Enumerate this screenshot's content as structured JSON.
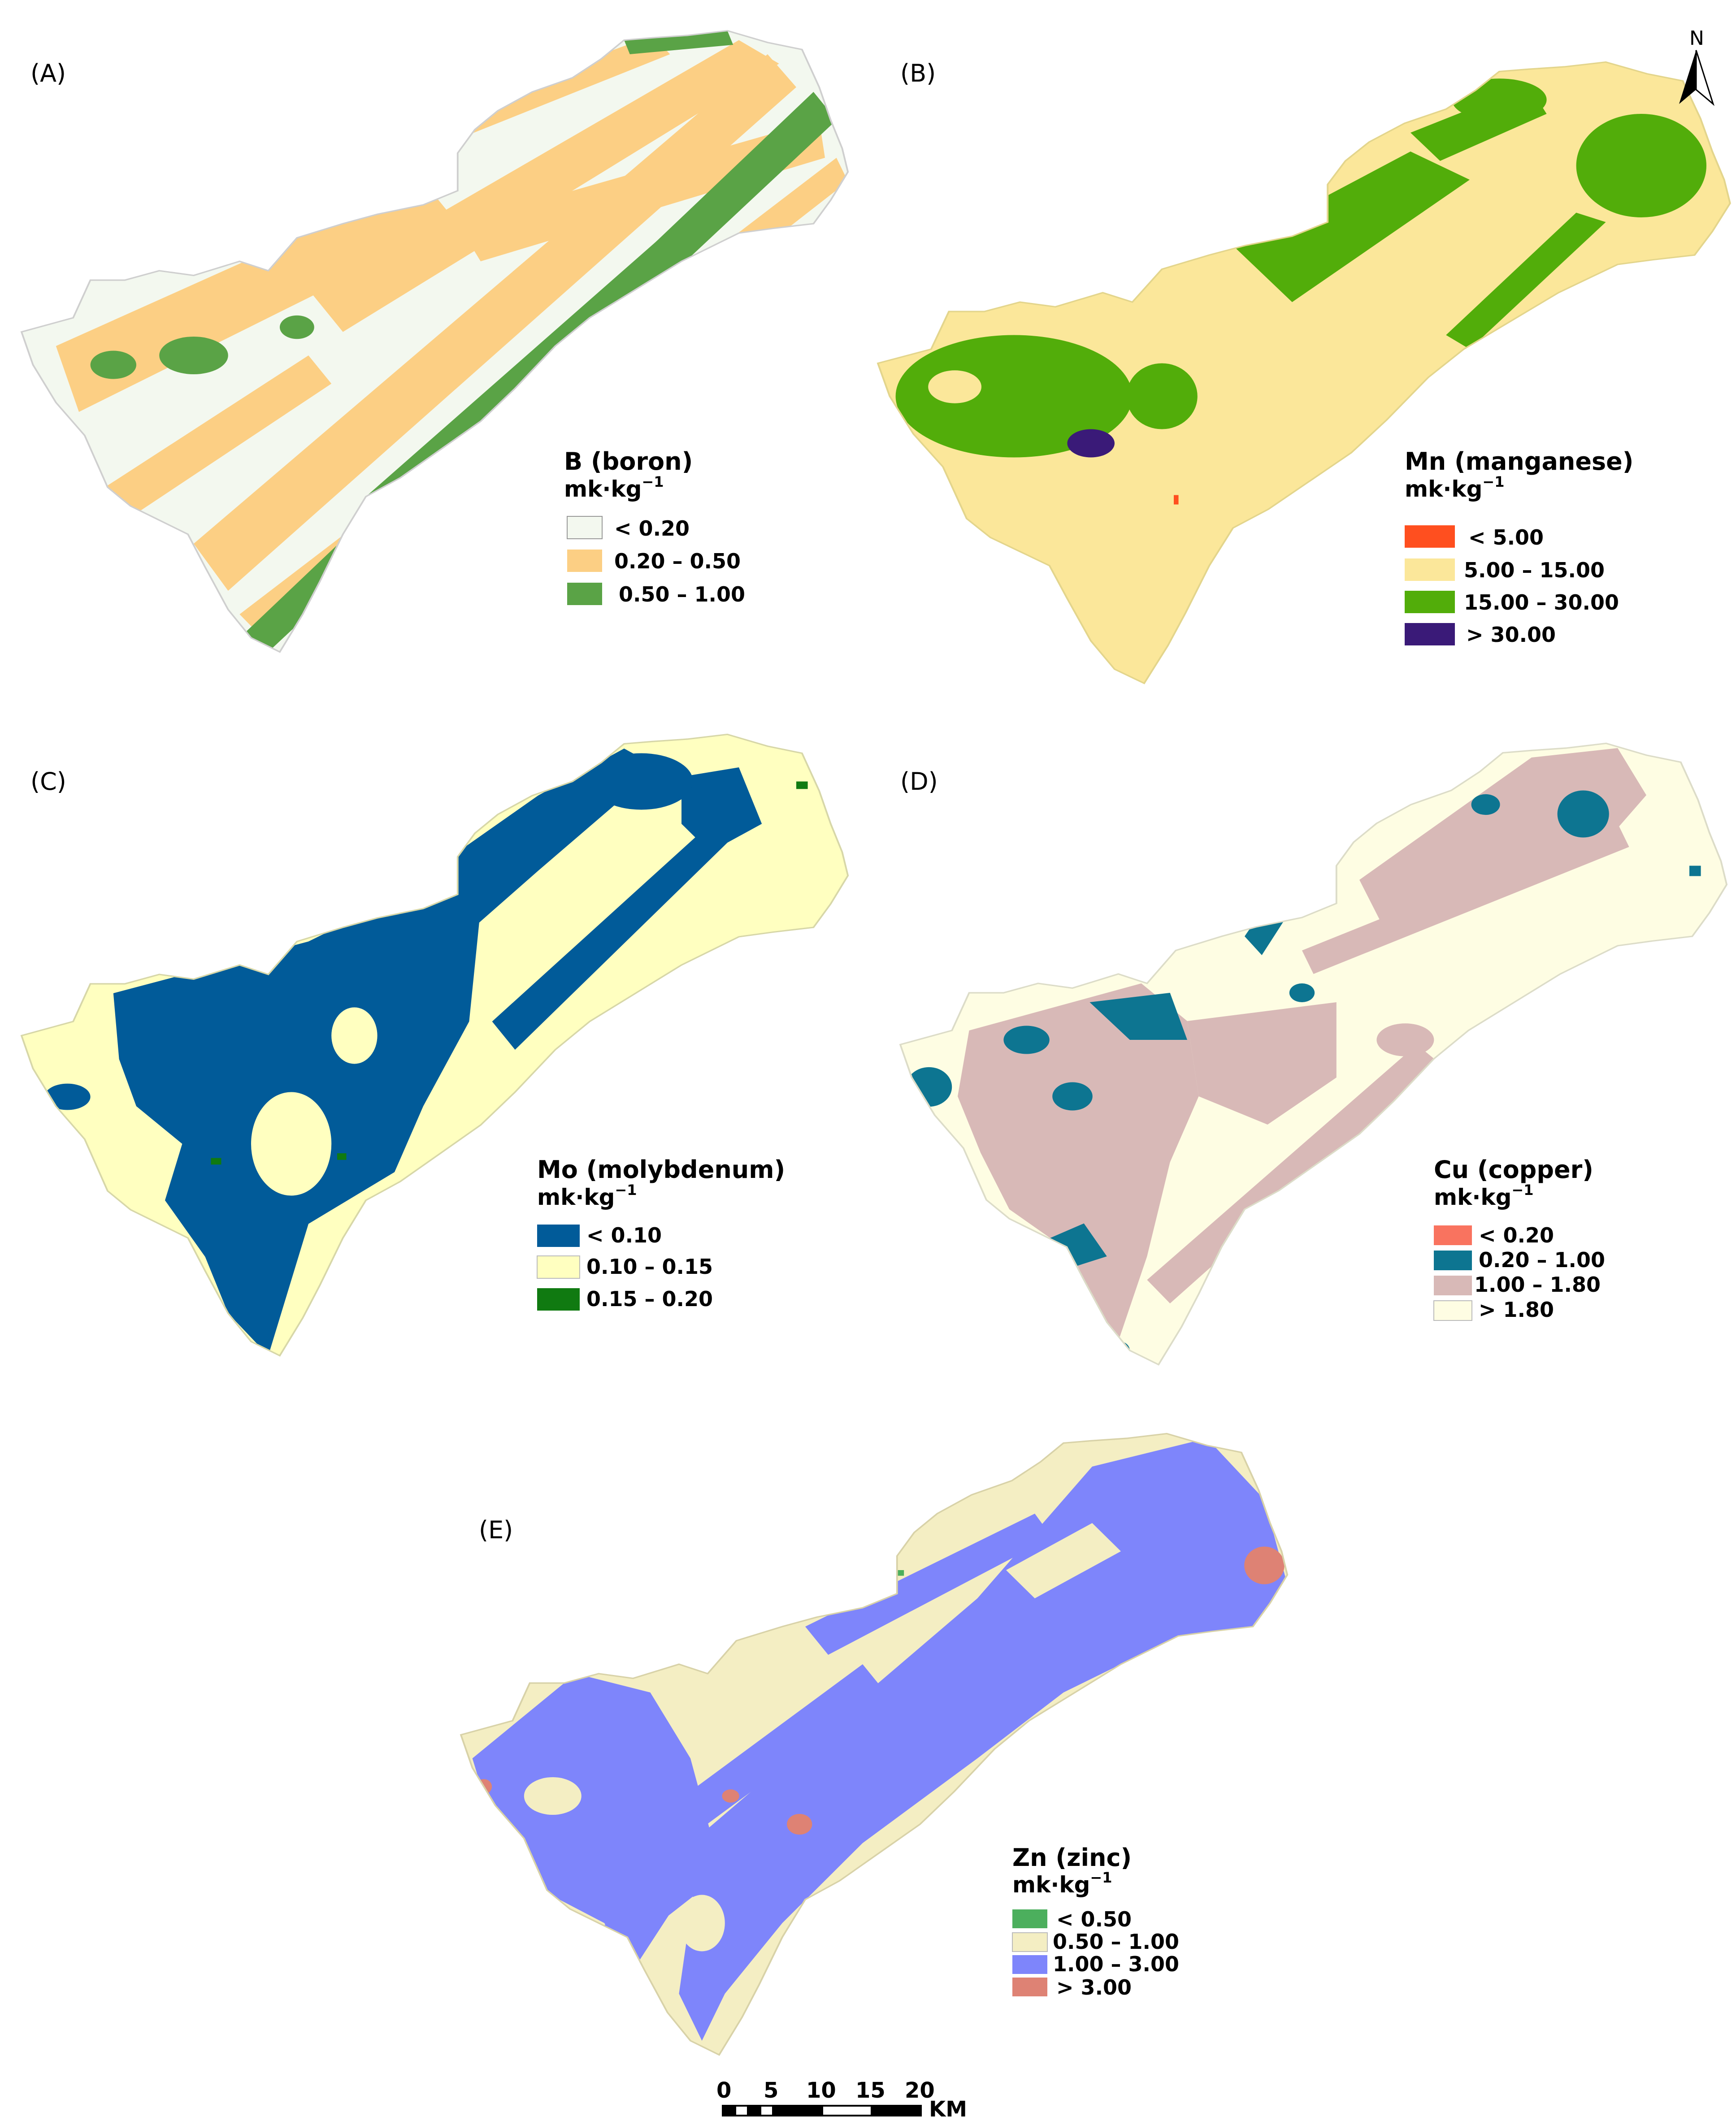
{
  "colors": {
    "boron": [
      "#f3f8ef",
      "#fccf84",
      "#5aa346"
    ],
    "manganese": [
      "#ff4f1f",
      "#fbe79a",
      "#52ad0a",
      "#3a1a78"
    ],
    "molybdenum": [
      "#015b99",
      "#ffffc0",
      "#107a11"
    ],
    "copper": [
      "#f9735f",
      "#0d7591",
      "#d8b9b7",
      "#fefde3"
    ],
    "zinc": [
      "#4caf5d",
      "#f4eec3",
      "#7e85fb",
      "#de8274"
    ]
  },
  "panels": [
    {
      "id": "A",
      "label": "(A)",
      "legend": {
        "title": "B  (boron)",
        "unit": "mk·kg",
        "unit_exp": "−1",
        "items": [
          {
            "label": "< 0.20"
          },
          {
            "label": "0.20 – 0.50"
          },
          {
            "label": "0.50 – 1.00"
          }
        ]
      }
    },
    {
      "id": "B",
      "label": "(B)",
      "legend": {
        "title": "Mn  (manganese)",
        "unit": "mk·kg",
        "unit_exp": "−1",
        "items": [
          {
            "label": "<  5.00"
          },
          {
            "label": "5.00 – 15.00"
          },
          {
            "label": "15.00 – 30.00"
          },
          {
            "label": "> 30.00"
          }
        ]
      }
    },
    {
      "id": "C",
      "label": "(C)",
      "legend": {
        "title": "Mo  (molybdenum)",
        "unit": "mk·kg",
        "unit_exp": "−1",
        "items": [
          {
            "label": "< 0.10"
          },
          {
            "label": "0.10 – 0.15"
          },
          {
            "label": "0.15 – 0.20"
          }
        ]
      }
    },
    {
      "id": "D",
      "label": "(D)",
      "legend": {
        "title": "Cu  (copper)",
        "unit": "mk·kg",
        "unit_exp": "−1",
        "items": [
          {
            "label": "< 0.20"
          },
          {
            "label": "0.20 – 1.00"
          },
          {
            "label": "1.00 – 1.80"
          },
          {
            "label": "> 1.80"
          }
        ]
      }
    },
    {
      "id": "E",
      "label": "(E)",
      "legend": {
        "title": "Zn  (zinc)",
        "unit": "mk·kg",
        "unit_exp": "−1",
        "items": [
          {
            "label": "< 0.50"
          },
          {
            "label": "0.50 – 1.00"
          },
          {
            "label": "1.00 – 3.00"
          },
          {
            "label": "> 3.00"
          }
        ]
      }
    }
  ],
  "north_arrow": {
    "label": "N"
  },
  "scale_bar": {
    "ticks": [
      "0",
      "5",
      "10",
      "15",
      "20"
    ],
    "unit": "KM"
  }
}
